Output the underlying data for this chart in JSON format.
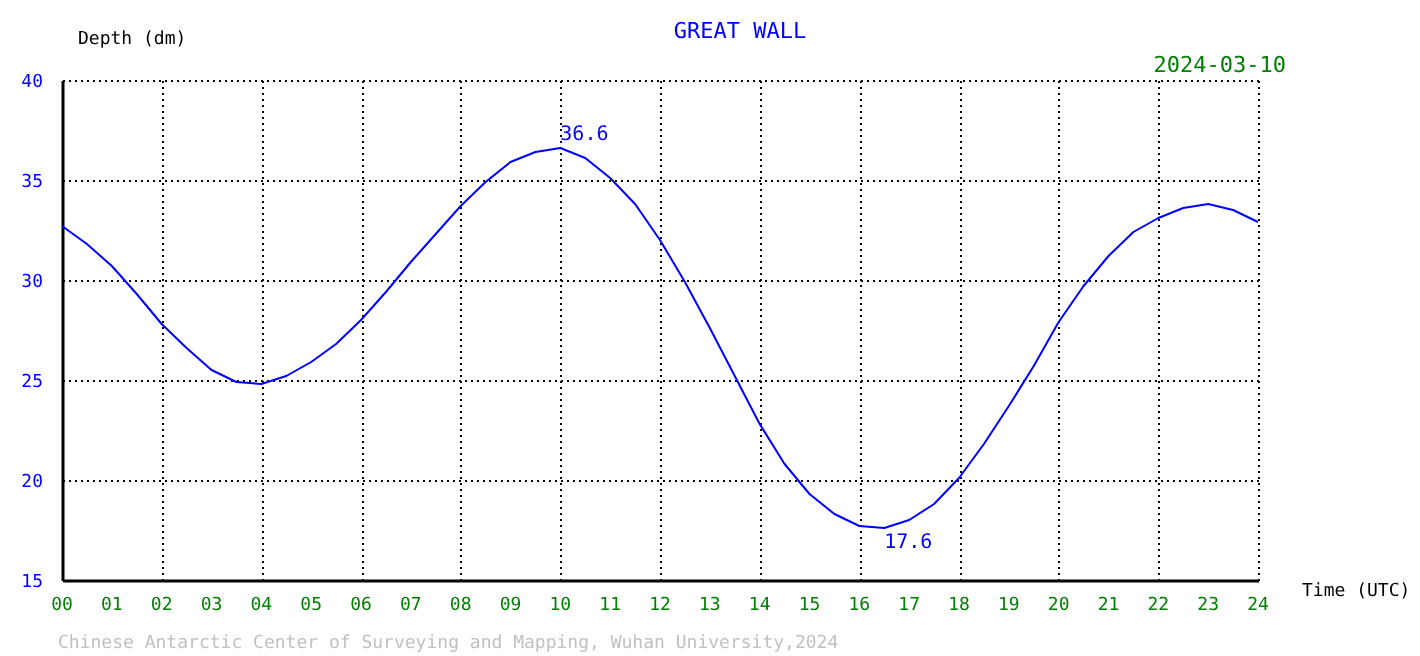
{
  "chart_data": {
    "type": "line",
    "title": "GREAT WALL",
    "xlabel": "Time (UTC)",
    "ylabel": "Depth (dm)",
    "x": [
      0,
      0.5,
      1,
      1.5,
      2,
      2.5,
      3,
      3.5,
      4,
      4.5,
      5,
      5.5,
      6,
      6.5,
      7,
      7.5,
      8,
      8.5,
      9,
      9.5,
      10,
      10.5,
      11,
      11.5,
      12,
      12.5,
      13,
      13.5,
      14,
      14.5,
      15,
      15.5,
      16,
      16.5,
      17,
      17.5,
      18,
      18.5,
      19,
      19.5,
      20,
      20.5,
      21,
      21.5,
      22,
      22.5,
      23,
      23.5,
      24
    ],
    "series": [
      {
        "color": "#0000ff",
        "values": [
          32.7,
          31.8,
          30.7,
          29.3,
          27.8,
          26.6,
          25.5,
          24.9,
          24.8,
          25.2,
          25.9,
          26.8,
          28.0,
          29.4,
          30.9,
          32.3,
          33.7,
          34.9,
          35.9,
          36.4,
          36.6,
          36.1,
          35.1,
          33.8,
          32.0,
          29.9,
          27.6,
          25.2,
          22.8,
          20.8,
          19.3,
          18.3,
          17.7,
          17.6,
          18.0,
          18.8,
          20.1,
          21.8,
          23.7,
          25.7,
          27.9,
          29.7,
          31.2,
          32.4,
          33.1,
          33.6,
          33.8,
          33.5,
          32.9
        ]
      }
    ],
    "xlim": [
      0,
      24
    ],
    "xticks": [
      {
        "value": 0,
        "label": "00"
      },
      {
        "value": 1,
        "label": "01"
      },
      {
        "value": 2,
        "label": "02"
      },
      {
        "value": 3,
        "label": "03"
      },
      {
        "value": 4,
        "label": "04"
      },
      {
        "value": 5,
        "label": "05"
      },
      {
        "value": 6,
        "label": "06"
      },
      {
        "value": 7,
        "label": "07"
      },
      {
        "value": 8,
        "label": "08"
      },
      {
        "value": 9,
        "label": "09"
      },
      10,
      11,
      12,
      13,
      14,
      15,
      16,
      17,
      18,
      19,
      20,
      21,
      22,
      23,
      24
    ],
    "ylim": [
      15,
      40
    ],
    "yticks": [
      15,
      20,
      25,
      30,
      35,
      40
    ],
    "annotations": [
      {
        "text": "36.6",
        "x": 10,
        "y": 36.6
      },
      {
        "text": "17.6",
        "x": 16.5,
        "y": 17.6
      },
      "2024-03-10",
      "Chinese Antarctic Center of Surveying and Mapping, Wuhan University,2024"
    ],
    "grid": true,
    "marker": "none",
    "line_style": "solid"
  }
}
